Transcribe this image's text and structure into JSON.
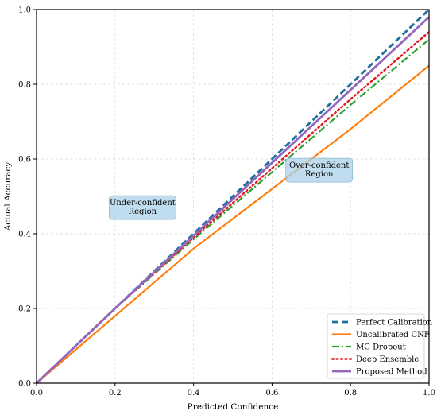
{
  "chart_data": {
    "type": "line",
    "title": "",
    "xlabel": "Predicted Confidence",
    "ylabel": "Actual Accuracy",
    "xlim": [
      0,
      1
    ],
    "ylim": [
      0,
      1
    ],
    "xticks": [
      "0.0",
      "0.2",
      "0.4",
      "0.6",
      "0.8",
      "1.0"
    ],
    "yticks": [
      "0.0",
      "0.2",
      "0.4",
      "0.6",
      "0.8",
      "1.0"
    ],
    "grid": true,
    "legend_position": "bottom-right",
    "series": [
      {
        "name": "Perfect Calibration",
        "color": "#1f6f9f",
        "dash": "dashed",
        "x": [
          0,
          1
        ],
        "y": [
          0,
          1.0
        ]
      },
      {
        "name": "Uncalibrated CNF",
        "color": "#ff7f0e",
        "dash": "solid",
        "x": [
          0,
          0.2,
          0.4,
          0.6,
          0.8,
          1.0
        ],
        "y": [
          0,
          0.18,
          0.36,
          0.52,
          0.68,
          0.85
        ]
      },
      {
        "name": "MC Dropout",
        "color": "#2ca02c",
        "dash": "dashdot",
        "x": [
          0,
          0.2,
          0.4,
          0.6,
          0.8,
          1.0
        ],
        "y": [
          0,
          0.2,
          0.385,
          0.565,
          0.745,
          0.92
        ]
      },
      {
        "name": "Deep Ensemble",
        "color": "#e8141e",
        "dash": "dotted",
        "x": [
          0,
          0.2,
          0.4,
          0.6,
          0.8,
          1.0
        ],
        "y": [
          0,
          0.2,
          0.39,
          0.575,
          0.76,
          0.94
        ]
      },
      {
        "name": "Proposed Method",
        "color": "#9467bd",
        "dash": "solid",
        "x": [
          0,
          0.2,
          0.4,
          0.6,
          0.8,
          1.0
        ],
        "y": [
          0,
          0.2,
          0.395,
          0.59,
          0.785,
          0.98
        ]
      }
    ],
    "annotations": [
      {
        "text": "Under-confident\nRegion",
        "x": 0.27,
        "y": 0.47
      },
      {
        "text": "Over-confident\nRegion",
        "x": 0.72,
        "y": 0.57
      }
    ]
  }
}
